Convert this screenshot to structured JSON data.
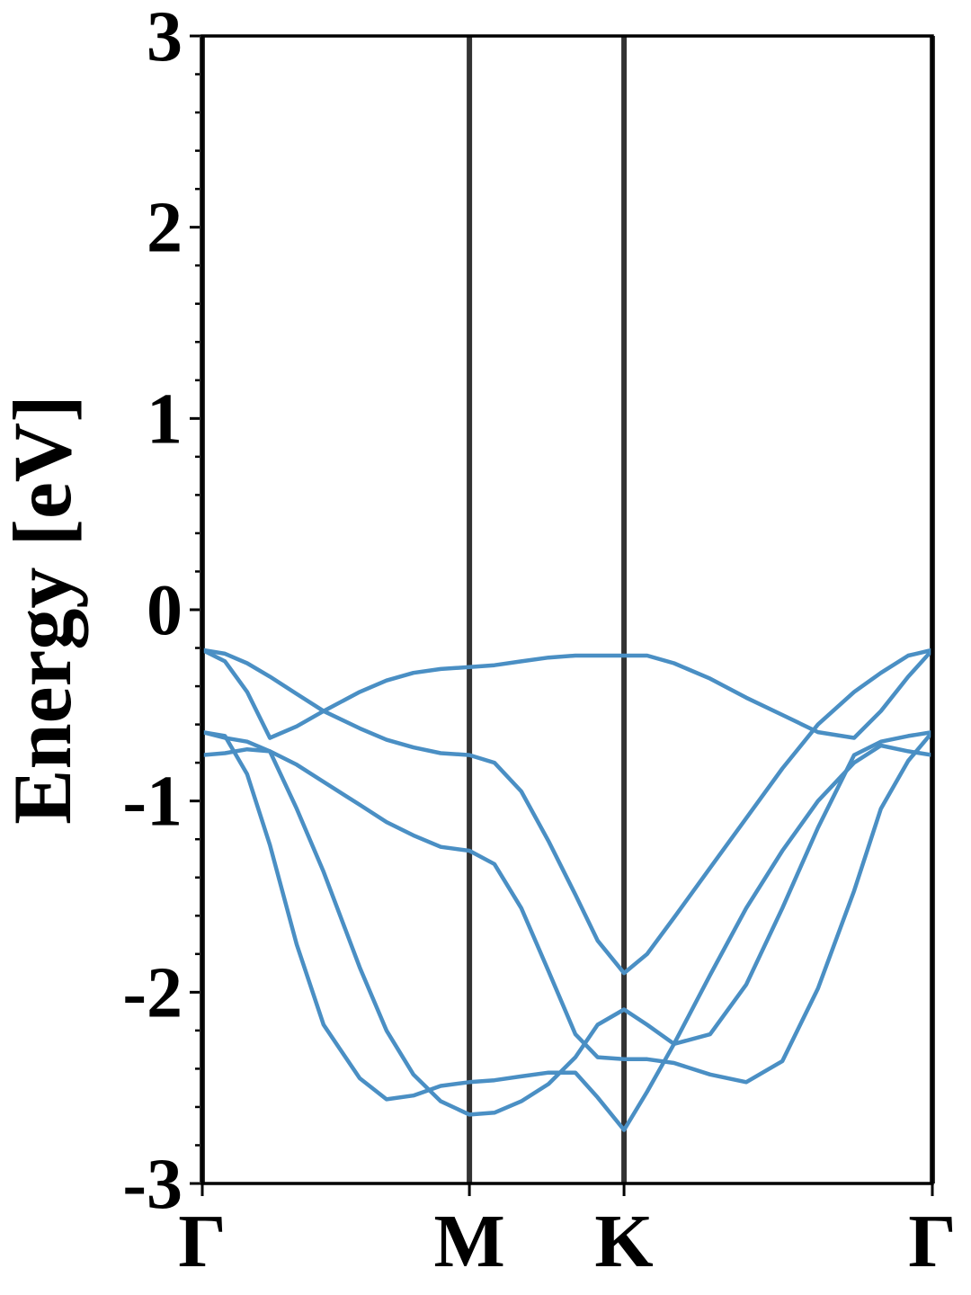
{
  "chart_data": {
    "type": "line",
    "ylabel": "Energy [eV]",
    "x": [
      0,
      0.049,
      0.097,
      0.146,
      0.204,
      0.262,
      0.34,
      0.398,
      0.456,
      0.515,
      0.577,
      0.631,
      0.689,
      0.748,
      0.806,
      0.854,
      0.911,
      0.961,
      1.019,
      1.097,
      1.175,
      1.253,
      1.33,
      1.408,
      1.466,
      1.525,
      1.577
    ],
    "series": [
      {
        "color": "#4a8fc4",
        "values": [
          -0.21,
          -0.23,
          -0.28,
          -0.35,
          -0.44,
          -0.53,
          -0.62,
          -0.68,
          -0.72,
          -0.75,
          -0.76,
          -0.8,
          -0.95,
          -1.21,
          -1.49,
          -1.73,
          -1.9,
          -1.8,
          -1.61,
          -1.35,
          -1.09,
          -0.83,
          -0.6,
          -0.43,
          -0.33,
          -0.24,
          -0.21
        ]
      },
      {
        "color": "#4a8fc4",
        "values": [
          -0.21,
          -0.27,
          -0.43,
          -0.67,
          -0.61,
          -0.53,
          -0.43,
          -0.37,
          -0.33,
          -0.31,
          -0.3,
          -0.29,
          -0.27,
          -0.25,
          -0.24,
          -0.24,
          -0.24,
          -0.24,
          -0.28,
          -0.36,
          -0.46,
          -0.55,
          -0.64,
          -0.67,
          -0.53,
          -0.35,
          -0.21
        ]
      },
      {
        "color": "#4a8fc4",
        "values": [
          -0.76,
          -0.75,
          -0.73,
          -0.74,
          -0.81,
          -0.9,
          -1.02,
          -1.11,
          -1.18,
          -1.24,
          -1.26,
          -1.33,
          -1.56,
          -1.89,
          -2.22,
          -2.34,
          -2.35,
          -2.35,
          -2.37,
          -2.43,
          -2.47,
          -2.36,
          -1.98,
          -1.47,
          -1.04,
          -0.79,
          -0.64
        ]
      },
      {
        "color": "#4a8fc4",
        "values": [
          -0.64,
          -0.66,
          -0.86,
          -1.23,
          -1.75,
          -2.17,
          -2.45,
          -2.56,
          -2.54,
          -2.49,
          -2.47,
          -2.46,
          -2.44,
          -2.42,
          -2.42,
          -2.55,
          -2.72,
          -2.52,
          -2.27,
          -1.91,
          -1.56,
          -1.26,
          -1.0,
          -0.8,
          -0.71,
          -0.74,
          -0.76
        ]
      },
      {
        "color": "#4a8fc4",
        "values": [
          -0.64,
          -0.67,
          -0.69,
          -0.74,
          -1.04,
          -1.37,
          -1.87,
          -2.2,
          -2.43,
          -2.57,
          -2.64,
          -2.63,
          -2.57,
          -2.48,
          -2.34,
          -2.17,
          -2.09,
          -2.17,
          -2.27,
          -2.22,
          -1.96,
          -1.56,
          -1.14,
          -0.76,
          -0.69,
          -0.66,
          -0.64
        ]
      }
    ],
    "xlim": [
      0,
      1.577
    ],
    "xticks": [
      {
        "value": 0,
        "label": "Γ"
      },
      {
        "value": 0.577,
        "label": "M"
      },
      {
        "value": 0.911,
        "label": "K"
      },
      {
        "value": 1.577,
        "label": "Γ"
      }
    ],
    "vline_color": "#333333",
    "ylim": [
      -3,
      3
    ],
    "yticks": [
      -3,
      -2,
      -1,
      0,
      1,
      2,
      3
    ],
    "yminorticks": [
      -2.8,
      -2.6,
      -2.4,
      -2.2,
      -1.8,
      -1.6,
      -1.4,
      -1.2,
      -0.8,
      -0.6,
      -0.4,
      -0.2,
      0.2,
      0.4,
      0.6,
      0.8,
      1.2,
      1.4,
      1.6,
      1.8,
      2.2,
      2.4,
      2.6,
      2.8
    ]
  }
}
